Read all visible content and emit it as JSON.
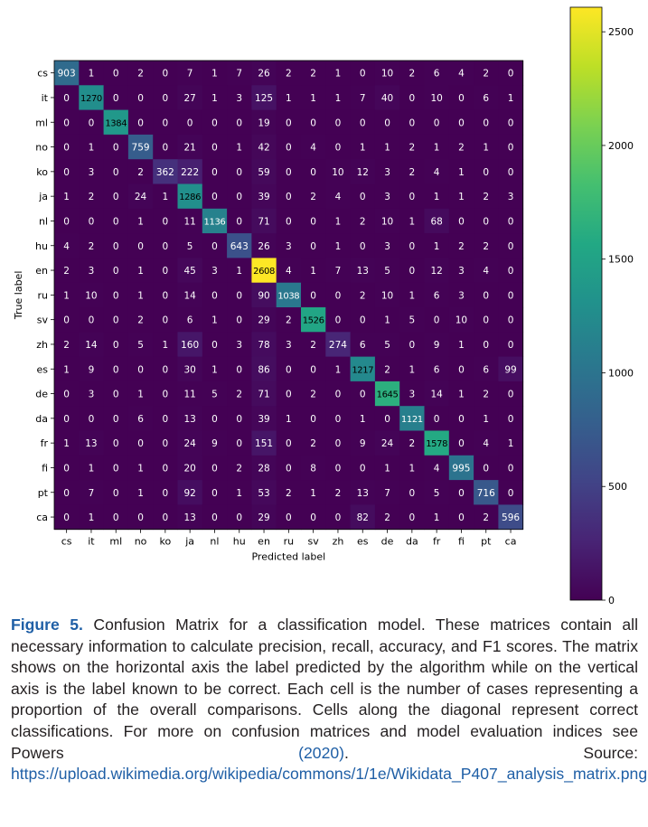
{
  "chart_data": {
    "type": "heatmap",
    "title": "",
    "xlabel": "Predicted label",
    "ylabel": "True label",
    "labels": [
      "cs",
      "it",
      "ml",
      "no",
      "ko",
      "ja",
      "nl",
      "hu",
      "en",
      "ru",
      "sv",
      "zh",
      "es",
      "de",
      "da",
      "fr",
      "fi",
      "pt",
      "ca"
    ],
    "matrix": [
      [
        903,
        1,
        0,
        2,
        0,
        7,
        1,
        7,
        26,
        2,
        2,
        1,
        0,
        10,
        2,
        6,
        4,
        2,
        0
      ],
      [
        0,
        1270,
        0,
        0,
        0,
        27,
        1,
        3,
        125,
        1,
        1,
        1,
        7,
        40,
        0,
        10,
        0,
        6,
        1
      ],
      [
        0,
        0,
        1384,
        0,
        0,
        0,
        0,
        0,
        19,
        0,
        0,
        0,
        0,
        0,
        0,
        0,
        0,
        0,
        0
      ],
      [
        0,
        1,
        0,
        759,
        0,
        21,
        0,
        1,
        42,
        0,
        4,
        0,
        1,
        1,
        2,
        1,
        2,
        1,
        0
      ],
      [
        0,
        3,
        0,
        2,
        362,
        222,
        0,
        0,
        59,
        0,
        0,
        10,
        12,
        3,
        2,
        4,
        1,
        0,
        0
      ],
      [
        1,
        2,
        0,
        24,
        1,
        1286,
        0,
        0,
        39,
        0,
        2,
        4,
        0,
        3,
        0,
        1,
        1,
        2,
        3
      ],
      [
        0,
        0,
        0,
        1,
        0,
        11,
        1136,
        0,
        71,
        0,
        0,
        1,
        2,
        10,
        1,
        68,
        0,
        0,
        0
      ],
      [
        4,
        2,
        0,
        0,
        0,
        5,
        0,
        643,
        26,
        3,
        0,
        1,
        0,
        3,
        0,
        1,
        2,
        2,
        0
      ],
      [
        2,
        3,
        0,
        1,
        0,
        45,
        3,
        1,
        2608,
        4,
        1,
        7,
        13,
        5,
        0,
        12,
        3,
        4,
        0
      ],
      [
        1,
        10,
        0,
        1,
        0,
        14,
        0,
        0,
        90,
        1038,
        0,
        0,
        2,
        10,
        1,
        6,
        3,
        0,
        0
      ],
      [
        0,
        0,
        0,
        2,
        0,
        6,
        1,
        0,
        29,
        2,
        1526,
        0,
        0,
        1,
        5,
        0,
        10,
        0,
        0
      ],
      [
        2,
        14,
        0,
        5,
        1,
        160,
        0,
        3,
        78,
        3,
        2,
        274,
        6,
        5,
        0,
        9,
        1,
        0,
        0
      ],
      [
        1,
        9,
        0,
        0,
        0,
        30,
        1,
        0,
        86,
        0,
        0,
        1,
        1217,
        2,
        1,
        6,
        0,
        6,
        99
      ],
      [
        0,
        3,
        0,
        1,
        0,
        11,
        5,
        2,
        71,
        0,
        2,
        0,
        0,
        1645,
        3,
        14,
        1,
        2,
        0
      ],
      [
        0,
        0,
        0,
        6,
        0,
        13,
        0,
        0,
        39,
        1,
        0,
        0,
        1,
        0,
        1121,
        0,
        0,
        1,
        0
      ],
      [
        1,
        13,
        0,
        0,
        0,
        24,
        9,
        0,
        151,
        0,
        2,
        0,
        9,
        24,
        2,
        1578,
        0,
        4,
        1
      ],
      [
        0,
        1,
        0,
        1,
        0,
        20,
        0,
        2,
        28,
        0,
        8,
        0,
        0,
        1,
        1,
        4,
        995,
        0,
        0
      ],
      [
        0,
        7,
        0,
        1,
        0,
        92,
        0,
        1,
        53,
        2,
        1,
        2,
        13,
        7,
        0,
        5,
        0,
        716,
        0
      ],
      [
        0,
        1,
        0,
        0,
        0,
        13,
        0,
        0,
        29,
        0,
        0,
        0,
        82,
        2,
        0,
        1,
        0,
        2,
        596
      ]
    ],
    "colorbar": {
      "colormap": "viridis",
      "min": 0,
      "max": 2608,
      "ticks": [
        0,
        500,
        1000,
        1500,
        2000,
        2500
      ]
    },
    "grid": false,
    "legend": "none"
  },
  "caption": {
    "label": "Figure 5.",
    "text": "Confusion Matrix for a classification model. These matrices contain all necessary information to calculate precision, recall, accuracy, and F1 scores. The matrix shows on the horizontal axis the label predicted by the algorithm while on the vertical axis is the label known to be correct. Each cell is the number of cases representing a proportion of the overall comparisons. Cells along the diagonal represent correct classifications. For more on confusion matrices and model evaluation indices see Powers",
    "ref": "(2020)",
    "after_ref": ". Source:",
    "url": "https://upload.wikimedia.org/wikipedia/commons/1/1e/Wikidata_P407_analysis_matrix.png",
    "end": "."
  }
}
